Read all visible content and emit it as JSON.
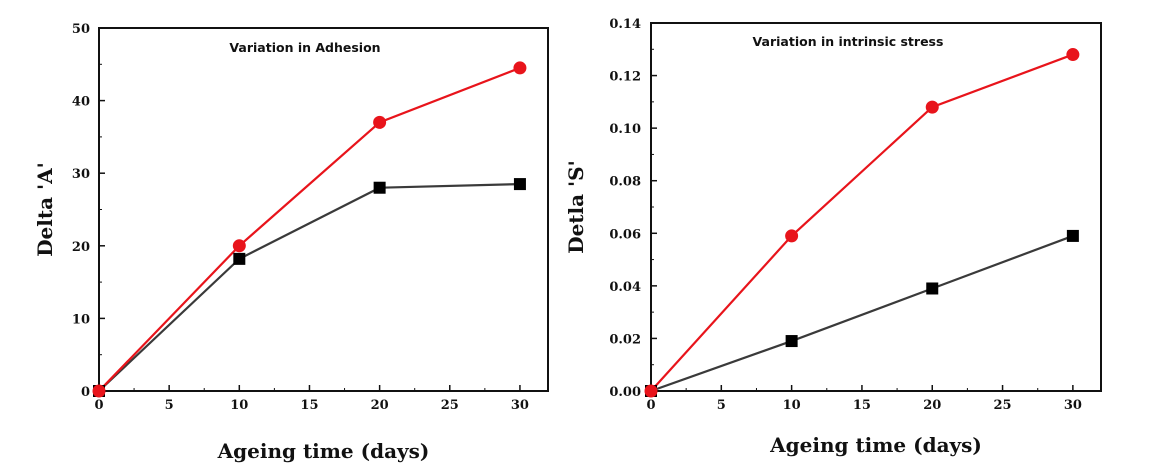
{
  "chart_data": [
    {
      "type": "line",
      "title": "Variation in Adhesion",
      "xlabel": "Ageing time (days)",
      "ylabel": "Delta 'A'",
      "xlim": [
        0,
        32
      ],
      "ylim": [
        0,
        50
      ],
      "x_ticks": [
        0,
        5,
        10,
        15,
        20,
        25,
        30
      ],
      "y_ticks": [
        0,
        10,
        20,
        30,
        40,
        50
      ],
      "x_tick_labels": [
        "0",
        "5",
        "10",
        "15",
        "20",
        "25",
        "30"
      ],
      "y_tick_labels": [
        "0",
        "10",
        "20",
        "30",
        "40",
        "50"
      ],
      "grid": false,
      "legend": "none",
      "series": [
        {
          "color": "#e8141b",
          "marker": "circle",
          "x": [
            0,
            10,
            20,
            30
          ],
          "y": [
            0,
            20,
            37,
            44.5
          ]
        },
        {
          "color": "#3a3a3a",
          "marker": "square",
          "x": [
            0,
            10,
            20,
            30
          ],
          "y": [
            0,
            18.2,
            28,
            28.5
          ]
        }
      ]
    },
    {
      "type": "line",
      "title": "Variation in intrinsic stress",
      "xlabel": "Ageing time (days)",
      "ylabel": "Detla 'S'",
      "xlim": [
        0,
        32
      ],
      "ylim": [
        0,
        0.14
      ],
      "x_ticks": [
        0,
        5,
        10,
        15,
        20,
        25,
        30
      ],
      "y_ticks": [
        0,
        0.02,
        0.04,
        0.06,
        0.08,
        0.1,
        0.12,
        0.14
      ],
      "x_tick_labels": [
        "0",
        "5",
        "10",
        "15",
        "20",
        "25",
        "30"
      ],
      "y_tick_labels": [
        "0.00",
        "0.02",
        "0.04",
        "0.06",
        "0.08",
        "0.10",
        "0.12",
        "0.14"
      ],
      "grid": false,
      "legend": "none",
      "series": [
        {
          "color": "#e8141b",
          "marker": "circle",
          "x": [
            0,
            10,
            20,
            30
          ],
          "y": [
            0,
            0.059,
            0.108,
            0.128
          ]
        },
        {
          "color": "#3a3a3a",
          "marker": "square",
          "x": [
            0,
            10,
            20,
            30
          ],
          "y": [
            0,
            0.019,
            0.039,
            0.059
          ]
        }
      ]
    }
  ]
}
